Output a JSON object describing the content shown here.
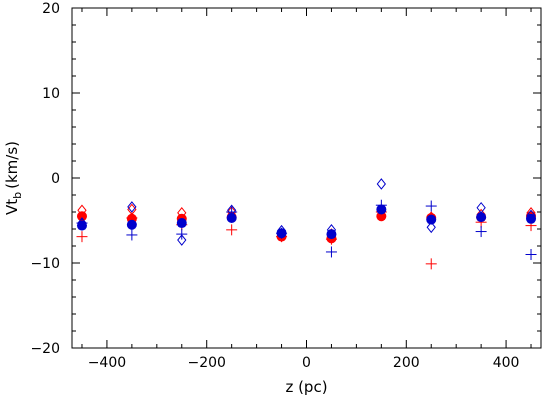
{
  "chart_data": {
    "type": "scatter",
    "xlabel": "z (pc)",
    "ylabel_main": "Vt",
    "ylabel_sub": "b",
    "ylabel_unit": "(km/s)",
    "xlim": [
      -470,
      470
    ],
    "ylim": [
      -20,
      20
    ],
    "x_ticks": [
      -400,
      -200,
      0,
      200,
      400
    ],
    "y_ticks": [
      -20,
      -10,
      0,
      10,
      20
    ],
    "x_tick_labels": [
      "−400",
      "−200",
      "0",
      "200",
      "400"
    ],
    "y_tick_labels": [
      "−20",
      "−10",
      "0",
      "10",
      "20"
    ],
    "grid": false,
    "series": [
      {
        "marker": "plus",
        "color": "#ff0000",
        "x": [
          -450,
          -350,
          -250,
          -150,
          -50,
          50,
          150,
          250,
          350,
          450
        ],
        "y": [
          -6.9,
          -4.7,
          -5.5,
          -6.1,
          -6.9,
          -7.2,
          -4.0,
          -10.1,
          -5.2,
          -5.6
        ]
      },
      {
        "marker": "diamond",
        "color": "#ff0000",
        "x": [
          -450,
          -350,
          -250,
          -150,
          -50,
          50,
          150,
          250,
          350,
          450
        ],
        "y": [
          -3.8,
          -3.7,
          -4.1,
          -4.0,
          -6.6,
          -6.6,
          -4.4,
          -4.6,
          -4.3,
          -4.1
        ]
      },
      {
        "marker": "dot",
        "color": "#ff0000",
        "x": [
          -450,
          -350,
          -250,
          -150,
          -50,
          50,
          150,
          250,
          350,
          450
        ],
        "y": [
          -4.5,
          -4.8,
          -4.8,
          -4.6,
          -6.9,
          -7.1,
          -4.5,
          -4.7,
          -4.6,
          -4.5
        ]
      },
      {
        "marker": "plus",
        "color": "#0000cc",
        "x": [
          -450,
          -350,
          -250,
          -150,
          -50,
          50,
          150,
          250,
          350,
          450
        ],
        "y": [
          -5.3,
          -6.7,
          -6.6,
          -4.0,
          -6.5,
          -8.7,
          -3.2,
          -3.3,
          -6.3,
          -9.0
        ]
      },
      {
        "marker": "diamond",
        "color": "#0000cc",
        "x": [
          -450,
          -350,
          -250,
          -150,
          -50,
          50,
          150,
          250,
          350,
          450
        ],
        "y": [
          -5.3,
          -3.4,
          -7.3,
          -3.8,
          -6.2,
          -6.1,
          -0.7,
          -5.8,
          -3.5,
          -4.4
        ]
      },
      {
        "marker": "dot",
        "color": "#0000cc",
        "x": [
          -450,
          -350,
          -250,
          -150,
          -50,
          50,
          150,
          250,
          350,
          450
        ],
        "y": [
          -5.6,
          -5.5,
          -5.3,
          -4.7,
          -6.5,
          -6.6,
          -3.7,
          -4.9,
          -4.6,
          -4.8
        ]
      }
    ]
  }
}
